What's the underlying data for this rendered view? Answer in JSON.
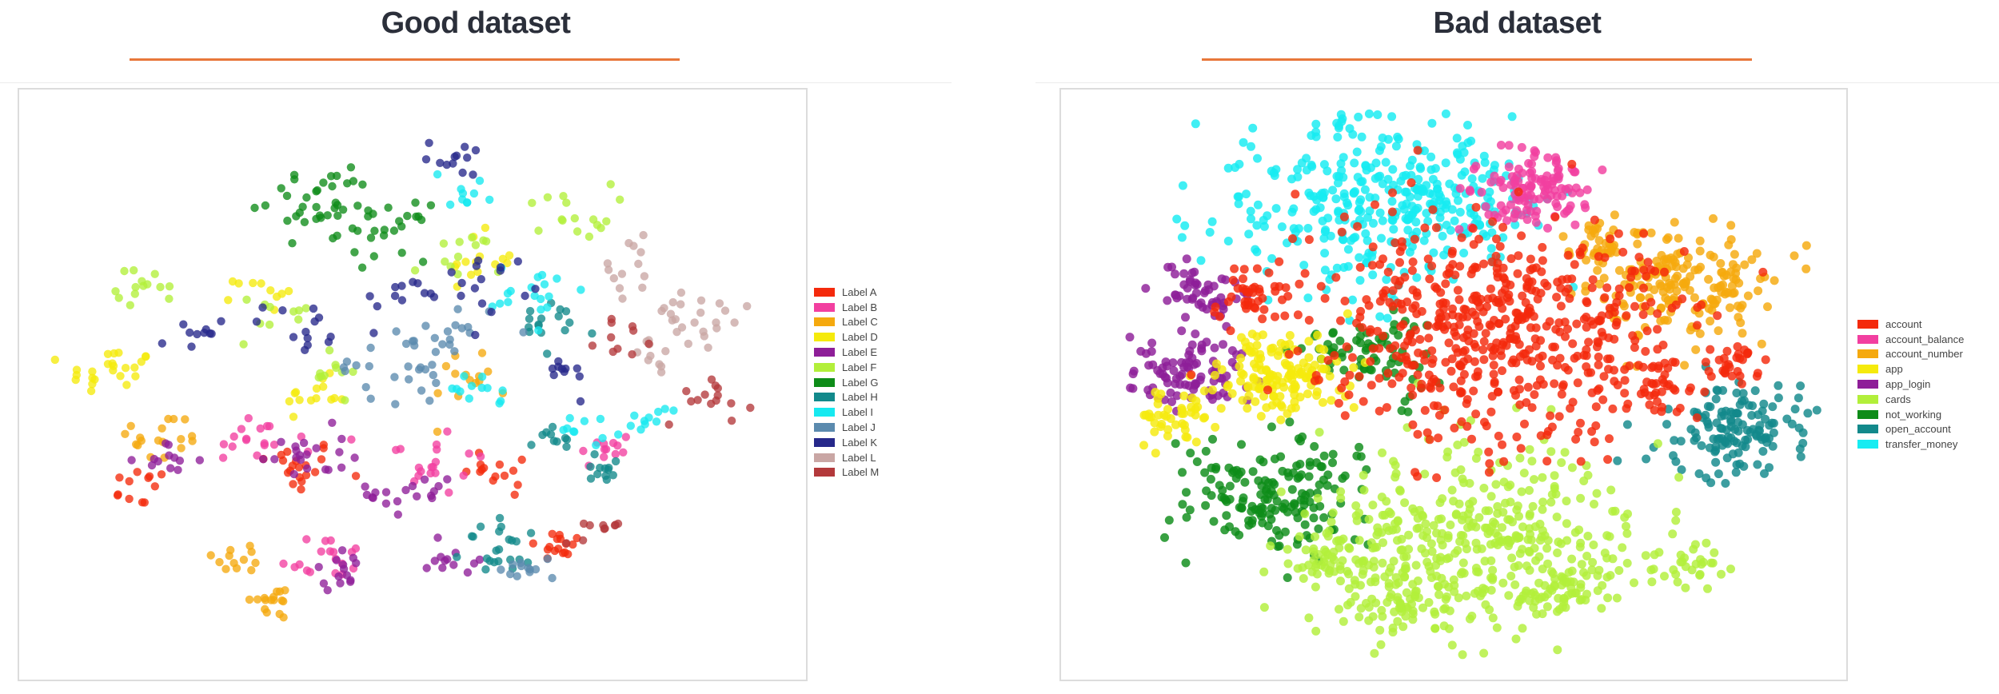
{
  "panels": [
    {
      "title": "Good dataset",
      "accent_color": "#e8773a",
      "chart_data": {
        "type": "scatter",
        "title": "",
        "xlabel": "",
        "ylabel": "",
        "legend_position": "right",
        "grid": false,
        "xlim": [
          0,
          100
        ],
        "ylim": [
          0,
          100
        ],
        "series": [
          {
            "name": "Label A",
            "color": "#f42a0c",
            "clusters": [
              [
                34,
                35,
                3,
                20
              ],
              [
                70,
                20,
                2,
                16
              ],
              [
                13,
                31,
                2,
                12
              ],
              [
                63,
                34,
                3,
                14
              ]
            ]
          },
          {
            "name": "Label B",
            "color": "#f23fa0",
            "clusters": [
              [
                38,
                18,
                3,
                18
              ],
              [
                52,
                36,
                4,
                20
              ],
              [
                28,
                40,
                3,
                16
              ],
              [
                76,
                38,
                2,
                12
              ]
            ]
          },
          {
            "name": "Label C",
            "color": "#f5a90e",
            "clusters": [
              [
                31,
                10,
                2,
                16
              ],
              [
                27,
                18,
                2,
                12
              ],
              [
                16,
                40,
                3,
                18
              ],
              [
                58,
                52,
                3,
                14
              ]
            ]
          },
          {
            "name": "Label D",
            "color": "#f5ea0c",
            "clusters": [
              [
                9,
                52,
                3,
                24
              ],
              [
                37,
                48,
                2,
                14
              ],
              [
                58,
                73,
                3,
                14
              ],
              [
                30,
                67,
                2,
                10
              ]
            ]
          },
          {
            "name": "Label E",
            "color": "#8e1e98",
            "clusters": [
              [
                35,
                37,
                3,
                20
              ],
              [
                50,
                30,
                3,
                18
              ],
              [
                17,
                36,
                2,
                12
              ],
              [
                40,
                16,
                2,
                14
              ],
              [
                56,
                18,
                3,
                12
              ]
            ]
          },
          {
            "name": "Label F",
            "color": "#b2ef3a",
            "clusters": [
              [
                14,
                68,
                2,
                14
              ],
              [
                71,
                82,
                3,
                16
              ],
              [
                32,
                62,
                3,
                10
              ],
              [
                56,
                73,
                3,
                12
              ],
              [
                39,
                52,
                2,
                10
              ]
            ]
          },
          {
            "name": "Label G",
            "color": "#0e8c18",
            "clusters": [
              [
                37,
                84,
                4,
                36
              ],
              [
                46,
                78,
                3,
                24
              ]
            ]
          },
          {
            "name": "Label H",
            "color": "#12898b",
            "clusters": [
              [
                63,
                20,
                3,
                22
              ],
              [
                76,
                34,
                2,
                12
              ],
              [
                69,
                60,
                3,
                16
              ],
              [
                69,
                40,
                2,
                10
              ]
            ]
          },
          {
            "name": "Label I",
            "color": "#16e9f0",
            "clusters": [
              [
                67,
                67,
                3,
                18
              ],
              [
                57,
                86,
                2,
                10
              ],
              [
                74,
                42,
                2,
                10
              ],
              [
                58,
                48,
                2,
                12
              ],
              [
                82,
                44,
                2,
                10
              ]
            ]
          },
          {
            "name": "Label J",
            "color": "#5b8aae",
            "clusters": [
              [
                47,
                53,
                4,
                24
              ],
              [
                56,
                60,
                3,
                16
              ],
              [
                66,
                16,
                2,
                12
              ]
            ]
          },
          {
            "name": "Label K",
            "color": "#26288a",
            "clusters": [
              [
                60,
                69,
                3,
                16
              ],
              [
                36,
                60,
                3,
                14
              ],
              [
                56,
                92,
                2,
                12
              ],
              [
                48,
                66,
                2,
                10
              ],
              [
                20,
                59,
                2,
                10
              ],
              [
                70,
                52,
                2,
                10
              ]
            ]
          },
          {
            "name": "Label L",
            "color": "#c9a6a4",
            "clusters": [
              [
                88,
                62,
                4,
                24
              ],
              [
                79,
                72,
                3,
                12
              ],
              [
                83,
                55,
                2,
                10
              ]
            ]
          },
          {
            "name": "Label M",
            "color": "#b3393b",
            "clusters": [
              [
                90,
                48,
                3,
                14
              ],
              [
                75,
                24,
                2,
                10
              ],
              [
                79,
                58,
                2,
                10
              ]
            ]
          }
        ]
      }
    },
    {
      "title": "Bad dataset",
      "accent_color": "#e8773a",
      "chart_data": {
        "type": "scatter",
        "title": "",
        "xlabel": "",
        "ylabel": "",
        "legend_position": "right",
        "grid": false,
        "xlim": [
          0,
          100
        ],
        "ylim": [
          0,
          100
        ],
        "series": [
          {
            "name": "transfer_money",
            "color": "#16ecf2",
            "clusters": [
              [
                36,
                83,
                10,
                260
              ],
              [
                50,
                85,
                6,
                120
              ]
            ]
          },
          {
            "name": "account_number",
            "color": "#f5a90e",
            "clusters": [
              [
                82,
                68,
                6,
                180
              ],
              [
                70,
                76,
                3,
                40
              ]
            ]
          },
          {
            "name": "account_balance",
            "color": "#f23fa0",
            "clusters": [
              [
                61,
                86,
                4,
                120
              ]
            ]
          },
          {
            "name": "app_login",
            "color": "#8e1e98",
            "clusters": [
              [
                14,
                52,
                4,
                90
              ],
              [
                15,
                67,
                3,
                50
              ]
            ]
          },
          {
            "name": "open_account",
            "color": "#12898b",
            "clusters": [
              [
                89,
                42,
                5,
                140
              ]
            ]
          },
          {
            "name": "not_working",
            "color": "#0e8c18",
            "clusters": [
              [
                25,
                30,
                6,
                170
              ],
              [
                39,
                56,
                4,
                70
              ]
            ]
          },
          {
            "name": "app",
            "color": "#f5ea0c",
            "clusters": [
              [
                25,
                52,
                5,
                150
              ],
              [
                12,
                43,
                3,
                40
              ]
            ]
          },
          {
            "name": "cards",
            "color": "#b2ef3a",
            "clusters": [
              [
                53,
                22,
                11,
                420
              ],
              [
                42,
                10,
                4,
                60
              ],
              [
                65,
                12,
                3,
                40
              ],
              [
                33,
                17,
                3,
                40
              ],
              [
                82,
                16,
                3,
                30
              ]
            ]
          },
          {
            "name": "account",
            "color": "#f42a0c",
            "clusters": [
              [
                55,
                60,
                12,
                560
              ],
              [
                78,
                50,
                3,
                40
              ],
              [
                88,
                54,
                2,
                30
              ],
              [
                23,
                67,
                3,
                40
              ]
            ]
          }
        ],
        "legend_order": [
          "account",
          "account_balance",
          "account_number",
          "app",
          "app_login",
          "cards",
          "not_working",
          "open_account",
          "transfer_money"
        ]
      }
    }
  ]
}
